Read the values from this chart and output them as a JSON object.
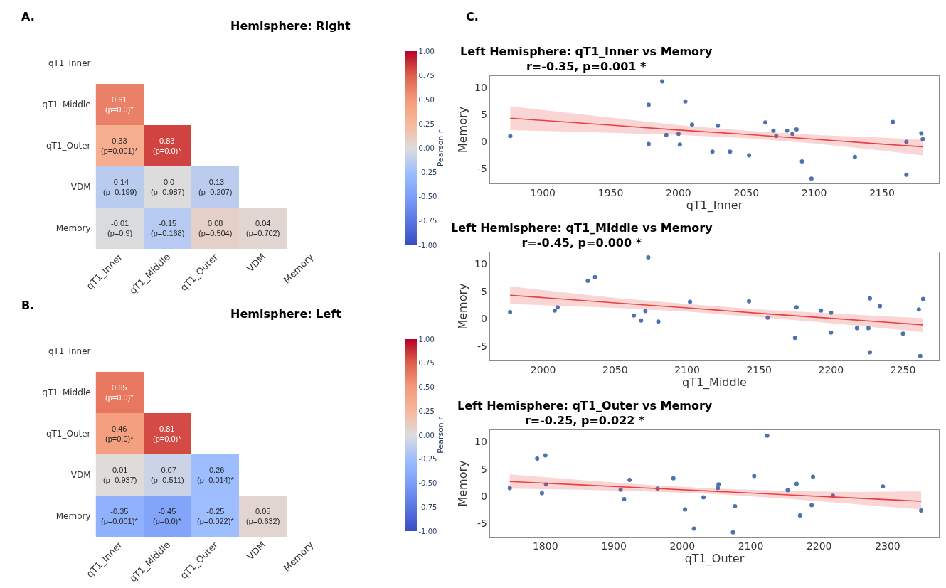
{
  "chart_data": [
    {
      "type": "heatmap",
      "title": "Hemisphere: Right",
      "annotations": [
        "A."
      ],
      "clabel": "Pearson r",
      "clim": [
        -1,
        1
      ],
      "cticks": [
        {
          "value": -1,
          "label": "-1.00"
        },
        {
          "value": -0.75,
          "label": "-0.75"
        },
        {
          "value": -0.5,
          "label": "-0.50"
        },
        {
          "value": -0.25,
          "label": "-0.25"
        },
        {
          "value": 0,
          "label": "0.00"
        },
        {
          "value": 0.25,
          "label": "0.25"
        },
        {
          "value": 0.5,
          "label": "0.50"
        },
        {
          "value": 0.75,
          "label": "0.75"
        },
        {
          "value": 1,
          "label": "1.00"
        }
      ],
      "categories": [
        "qT1_Inner",
        "qT1_Middle",
        "qT1_Outer",
        "VDM",
        "Memory"
      ],
      "y_categories": [
        "qT1_Inner",
        "qT1_Middle",
        "qT1_Outer",
        "VDM",
        "Memory"
      ],
      "cells": [
        [
          null,
          null,
          null,
          null,
          null
        ],
        [
          0.61,
          null,
          null,
          null,
          null
        ],
        [
          0.33,
          0.83,
          null,
          null,
          null
        ],
        [
          -0.14,
          -0.0,
          -0.13,
          null,
          null
        ],
        [
          -0.01,
          -0.15,
          0.08,
          0.04,
          null
        ]
      ],
      "cell_labels": [
        [
          null,
          null,
          null,
          null,
          null
        ],
        [
          "0.61\n(p=0.0)*",
          null,
          null,
          null,
          null
        ],
        [
          "0.33\n(p=0.001)*",
          "0.83\n(p=0.0)*",
          null,
          null,
          null
        ],
        [
          "-0.14\n(p=0.199)",
          "-0.0\n(p=0.987)",
          "-0.13\n(p=0.207)",
          null,
          null
        ],
        [
          "-0.01\n(p=0.9)",
          "-0.15\n(p=0.168)",
          "0.08\n(p=0.504)",
          "0.04\n(p=0.702)",
          null
        ]
      ]
    },
    {
      "type": "heatmap",
      "title": "Hemisphere: Left",
      "annotations": [
        "B."
      ],
      "clabel": "Pearson r",
      "clim": [
        -1,
        1
      ],
      "cticks": [
        {
          "value": -1,
          "label": "-1.00"
        },
        {
          "value": -0.75,
          "label": "-0.75"
        },
        {
          "value": -0.5,
          "label": "-0.50"
        },
        {
          "value": -0.25,
          "label": "-0.25"
        },
        {
          "value": 0,
          "label": "0.00"
        },
        {
          "value": 0.25,
          "label": "0.25"
        },
        {
          "value": 0.5,
          "label": "0.50"
        },
        {
          "value": 0.75,
          "label": "0.75"
        },
        {
          "value": 1,
          "label": "1.00"
        }
      ],
      "categories": [
        "qT1_Inner",
        "qT1_Middle",
        "qT1_Outer",
        "VDM",
        "Memory"
      ],
      "y_categories": [
        "qT1_Inner",
        "qT1_Middle",
        "qT1_Outer",
        "VDM",
        "Memory"
      ],
      "cells": [
        [
          null,
          null,
          null,
          null,
          null
        ],
        [
          0.65,
          null,
          null,
          null,
          null
        ],
        [
          0.46,
          0.81,
          null,
          null,
          null
        ],
        [
          0.01,
          -0.07,
          -0.26,
          null,
          null
        ],
        [
          -0.35,
          -0.45,
          -0.25,
          0.05,
          null
        ]
      ],
      "cell_labels": [
        [
          null,
          null,
          null,
          null,
          null
        ],
        [
          "0.65\n(p=0.0)*",
          null,
          null,
          null,
          null
        ],
        [
          "0.46\n(p=0.0)*",
          "0.81\n(p=0.0)*",
          null,
          null,
          null
        ],
        [
          "0.01\n(p=0.937)",
          "-0.07\n(p=0.511)",
          "-0.26\n(p=0.014)*",
          null,
          null
        ],
        [
          "-0.35\n(p=0.001)*",
          "-0.45\n(p=0.0)*",
          "-0.25\n(p=0.022)*",
          "0.05\n(p=0.632)",
          null
        ]
      ]
    },
    {
      "type": "scatter",
      "title": "Left Hemisphere: qT1_Inner vs Memory",
      "subtitle": "r=-0.35, p=0.001 *",
      "xlabel": "qT1_Inner",
      "ylabel": "Memory",
      "annotations": [
        "C."
      ],
      "xlim": [
        1861,
        2192
      ],
      "ylim": [
        -7.8,
        12.1
      ],
      "xticks": [
        1900,
        1950,
        2000,
        2050,
        2100,
        2150
      ],
      "yticks": [
        -5,
        0,
        5,
        10
      ],
      "series": [
        {
          "type": "scatter",
          "marker": "circle",
          "color": "#4c72b0",
          "x": [
            1876,
            1978,
            1978,
            1988,
            1991,
            2000,
            2005,
            2001,
            2010,
            2025,
            2029,
            2038,
            2052,
            2064,
            2070,
            2072,
            2080,
            2084,
            2087,
            2091,
            2098,
            2130,
            2158,
            2168,
            2168,
            2179,
            2180
          ],
          "values": [
            1.0,
            6.8,
            -0.5,
            11.1,
            1.2,
            1.4,
            7.4,
            -0.6,
            3.1,
            -1.9,
            2.9,
            -1.9,
            -2.6,
            3.5,
            2.0,
            1.0,
            2.0,
            1.4,
            2.2,
            -3.7,
            -6.9,
            -2.9,
            3.6,
            -0.1,
            -6.2,
            1.5,
            0.4
          ]
        },
        {
          "type": "line",
          "color": "#e8413f",
          "x": [
            1876,
            1950,
            2000,
            2050,
            2100,
            2150,
            2180
          ],
          "values": [
            4.3,
            3.0,
            2.1,
            1.3,
            0.4,
            -0.5,
            -1.0
          ],
          "lower": [
            2.1,
            1.6,
            1.2,
            0.6,
            -0.4,
            -1.7,
            -2.6
          ],
          "upper": [
            6.5,
            4.4,
            3.0,
            2.0,
            1.2,
            0.7,
            0.3
          ]
        }
      ]
    },
    {
      "type": "scatter",
      "title": "Left Hemisphere: qT1_Middle vs Memory",
      "subtitle": "r=-0.45, p=0.000 *",
      "xlabel": "qT1_Middle",
      "ylabel": "Memory",
      "xlim": [
        1963,
        2275
      ],
      "ylim": [
        -7.6,
        12.1
      ],
      "xticks": [
        2000,
        2050,
        2100,
        2150,
        2200,
        2250
      ],
      "yticks": [
        -5,
        0,
        5,
        10
      ],
      "series": [
        {
          "type": "scatter",
          "marker": "circle",
          "color": "#4c72b0",
          "x": [
            1977,
            2008,
            2010,
            2031,
            2036,
            2063,
            2068,
            2071,
            2073,
            2080,
            2102,
            2143,
            2156,
            2175,
            2176,
            2193,
            2200,
            2200,
            2218,
            2226,
            2227,
            2227,
            2234,
            2250,
            2261,
            2262,
            2264
          ],
          "values": [
            1.2,
            1.5,
            2.1,
            6.9,
            7.6,
            0.6,
            -0.3,
            1.4,
            11.2,
            -0.5,
            3.1,
            3.2,
            0.2,
            -3.5,
            2.1,
            1.5,
            1.1,
            -2.5,
            -1.7,
            -1.7,
            3.7,
            -6.1,
            2.3,
            -2.7,
            1.7,
            -6.8,
            3.6
          ]
        },
        {
          "type": "line",
          "color": "#e8413f",
          "x": [
            1977,
            2050,
            2100,
            2150,
            2200,
            2264
          ],
          "values": [
            4.3,
            2.9,
            2.0,
            1.0,
            0.1,
            -1.1
          ],
          "lower": [
            2.7,
            2.0,
            1.3,
            0.3,
            -0.8,
            -2.4
          ],
          "upper": [
            5.9,
            3.8,
            2.7,
            1.7,
            1.0,
            0.1
          ]
        }
      ]
    },
    {
      "type": "scatter",
      "title": "Left Hemisphere: qT1_Outer vs Memory",
      "subtitle": "r=-0.25, p=0.022 *",
      "xlabel": "qT1_Outer",
      "ylabel": "Memory",
      "xlim": [
        1719,
        2375
      ],
      "ylim": [
        -7.4,
        12.1
      ],
      "xticks": [
        1800,
        1900,
        2000,
        2100,
        2200,
        2300
      ],
      "yticks": [
        -5,
        0,
        5,
        10
      ],
      "series": [
        {
          "type": "scatter",
          "marker": "circle",
          "color": "#4c72b0",
          "x": [
            1748,
            1788,
            1795,
            1800,
            1801,
            1910,
            1915,
            1923,
            1964,
            1987,
            2004,
            2017,
            2031,
            2052,
            2053,
            2074,
            2077,
            2105,
            2124,
            2154,
            2167,
            2172,
            2189,
            2191,
            2220,
            2293,
            2349
          ],
          "values": [
            1.5,
            6.9,
            0.6,
            7.5,
            2.2,
            1.2,
            -0.5,
            3.0,
            1.4,
            3.3,
            -2.4,
            -5.9,
            -0.2,
            1.5,
            2.2,
            -6.6,
            -1.8,
            3.7,
            11.1,
            1.1,
            2.3,
            -3.5,
            -1.6,
            3.6,
            0.1,
            1.8,
            -2.6
          ]
        },
        {
          "type": "line",
          "color": "#e8413f",
          "x": [
            1748,
            1850,
            1950,
            2050,
            2150,
            2250,
            2349
          ],
          "values": [
            2.7,
            2.1,
            1.5,
            0.9,
            0.3,
            -0.3,
            -0.9
          ],
          "lower": [
            1.4,
            1.2,
            0.9,
            0.4,
            -0.4,
            -1.4,
            -2.4
          ],
          "upper": [
            4.0,
            3.0,
            2.1,
            1.4,
            1.0,
            0.8,
            0.9
          ]
        }
      ]
    }
  ]
}
